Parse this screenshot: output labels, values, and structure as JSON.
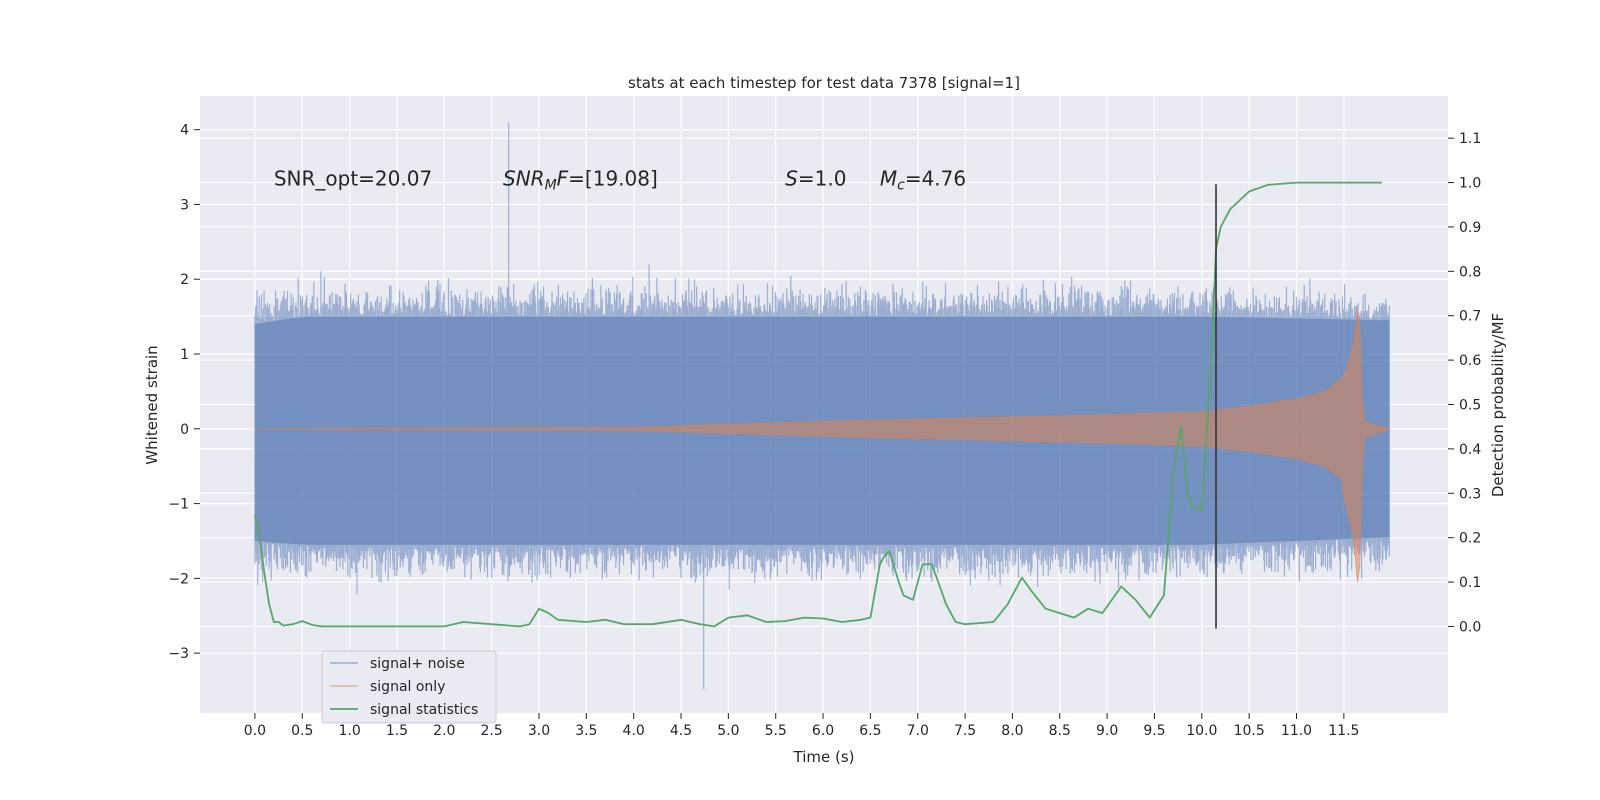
{
  "chart_data": {
    "type": "line",
    "title": "stats at each timestep for test data 7378 [signal=1]",
    "xlabel": "Time (s)",
    "ylabel_left": "Whitened strain",
    "ylabel_right": "Detection probability/MF",
    "xlim": [
      -0.58,
      12.6
    ],
    "ylim_left": [
      -3.8,
      4.45
    ],
    "ylim_right": [
      -0.195,
      1.195
    ],
    "x_ticks": [
      0.0,
      0.5,
      1.0,
      1.5,
      2.0,
      2.5,
      3.0,
      3.5,
      4.0,
      4.5,
      5.0,
      5.5,
      6.0,
      6.5,
      7.0,
      7.5,
      8.0,
      8.5,
      9.0,
      9.5,
      10.0,
      10.5,
      11.0,
      11.5
    ],
    "x_tick_labels": [
      "0.0",
      "0.5",
      "1.0",
      "1.5",
      "2.0",
      "2.5",
      "3.0",
      "3.5",
      "4.0",
      "4.5",
      "5.0",
      "5.5",
      "6.0",
      "6.5",
      "7.0",
      "7.5",
      "8.0",
      "8.5",
      "9.0",
      "9.5",
      "10.0",
      "10.5",
      "11.0",
      "11.5"
    ],
    "y_left_ticks": [
      -3,
      -2,
      -1,
      0,
      1,
      2,
      3,
      4
    ],
    "y_left_tick_labels": [
      "−3",
      "−2",
      "−1",
      "0",
      "1",
      "2",
      "3",
      "4"
    ],
    "y_right_ticks": [
      0.0,
      0.1,
      0.2,
      0.3,
      0.4,
      0.5,
      0.6,
      0.7,
      0.8,
      0.9,
      1.0,
      1.1
    ],
    "y_right_tick_labels": [
      "0.0",
      "0.1",
      "0.2",
      "0.3",
      "0.4",
      "0.5",
      "0.6",
      "0.7",
      "0.8",
      "0.9",
      "1.0",
      "1.1"
    ],
    "grid": true,
    "legend_position": "lower-left",
    "annotations": [
      {
        "id": "snr-opt",
        "text": "SNR_opt=20.07",
        "x": 0.2,
        "y": 3.35
      },
      {
        "id": "snr-mf",
        "text_main": "SNR",
        "text_sub": "M",
        "text_rest": "F=[19.08]",
        "x": 2.62,
        "y": 3.35
      },
      {
        "id": "s-value",
        "text_main": "S",
        "text_rest": "=1.0",
        "x": 5.6,
        "y": 3.35
      },
      {
        "id": "mc-value",
        "text_main": "M",
        "text_sub": "c",
        "text_rest": "=4.76",
        "x": 6.6,
        "y": 3.35
      }
    ],
    "vertical_marker": {
      "x": 10.15,
      "y_range": [
        -2.67,
        3.27
      ],
      "color": "#333333"
    },
    "series": [
      {
        "name": "signal+ noise",
        "kind": "noise-band",
        "color": "#4c72b0",
        "x_range": [
          0.0,
          11.98
        ],
        "envelope_upper": [
          [
            0.0,
            1.4
          ],
          [
            0.5,
            1.5
          ],
          [
            1.0,
            1.5
          ],
          [
            2.0,
            1.5
          ],
          [
            4.0,
            1.5
          ],
          [
            6.0,
            1.5
          ],
          [
            8.0,
            1.5
          ],
          [
            10.0,
            1.5
          ],
          [
            11.98,
            1.45
          ]
        ],
        "envelope_lower": [
          [
            0.0,
            -1.5
          ],
          [
            0.5,
            -1.55
          ],
          [
            2.0,
            -1.55
          ],
          [
            4.0,
            -1.55
          ],
          [
            6.0,
            -1.55
          ],
          [
            8.0,
            -1.55
          ],
          [
            10.0,
            -1.55
          ],
          [
            11.98,
            -1.45
          ]
        ],
        "spike_max": 4.1,
        "spike_max_x": 2.68,
        "spike_min": -3.48,
        "spike_min_x": 4.74
      },
      {
        "name": "signal only",
        "kind": "chirp",
        "color": "#dd8452",
        "envelope": [
          [
            0.0,
            0.0
          ],
          [
            4.0,
            0.02
          ],
          [
            5.0,
            0.06
          ],
          [
            6.0,
            0.1
          ],
          [
            7.0,
            0.13
          ],
          [
            8.0,
            0.16
          ],
          [
            9.0,
            0.19
          ],
          [
            10.0,
            0.23
          ],
          [
            10.5,
            0.3
          ],
          [
            11.0,
            0.4
          ],
          [
            11.3,
            0.5
          ],
          [
            11.5,
            0.7
          ],
          [
            11.6,
            1.1
          ],
          [
            11.66,
            1.75
          ],
          [
            11.7,
            0.1
          ],
          [
            11.98,
            0.0
          ]
        ]
      },
      {
        "name": "signal statistics",
        "kind": "line",
        "axis": "right",
        "color": "#55a868",
        "points": [
          [
            0.0,
            0.25
          ],
          [
            0.05,
            0.2
          ],
          [
            0.1,
            0.12
          ],
          [
            0.15,
            0.05
          ],
          [
            0.2,
            0.01
          ],
          [
            0.25,
            0.01
          ],
          [
            0.3,
            0.002
          ],
          [
            0.4,
            0.005
          ],
          [
            0.5,
            0.012
          ],
          [
            0.6,
            0.004
          ],
          [
            0.7,
            0.0
          ],
          [
            1.0,
            0.0
          ],
          [
            1.5,
            0.0
          ],
          [
            2.0,
            0.0
          ],
          [
            2.2,
            0.01
          ],
          [
            2.5,
            0.005
          ],
          [
            2.8,
            0.0
          ],
          [
            2.9,
            0.005
          ],
          [
            3.0,
            0.04
          ],
          [
            3.1,
            0.03
          ],
          [
            3.2,
            0.015
          ],
          [
            3.5,
            0.01
          ],
          [
            3.7,
            0.015
          ],
          [
            3.9,
            0.005
          ],
          [
            4.2,
            0.005
          ],
          [
            4.5,
            0.015
          ],
          [
            4.7,
            0.005
          ],
          [
            4.85,
            0.0
          ],
          [
            5.0,
            0.02
          ],
          [
            5.2,
            0.025
          ],
          [
            5.4,
            0.01
          ],
          [
            5.6,
            0.012
          ],
          [
            5.8,
            0.02
          ],
          [
            6.0,
            0.018
          ],
          [
            6.2,
            0.01
          ],
          [
            6.4,
            0.015
          ],
          [
            6.5,
            0.02
          ],
          [
            6.6,
            0.14
          ],
          [
            6.65,
            0.16
          ],
          [
            6.7,
            0.17
          ],
          [
            6.8,
            0.1
          ],
          [
            6.85,
            0.07
          ],
          [
            6.95,
            0.06
          ],
          [
            7.05,
            0.14
          ],
          [
            7.15,
            0.14
          ],
          [
            7.3,
            0.05
          ],
          [
            7.4,
            0.01
          ],
          [
            7.5,
            0.005
          ],
          [
            7.8,
            0.01
          ],
          [
            7.95,
            0.05
          ],
          [
            8.1,
            0.11
          ],
          [
            8.2,
            0.08
          ],
          [
            8.35,
            0.04
          ],
          [
            8.5,
            0.03
          ],
          [
            8.65,
            0.02
          ],
          [
            8.8,
            0.04
          ],
          [
            8.95,
            0.03
          ],
          [
            9.15,
            0.09
          ],
          [
            9.3,
            0.06
          ],
          [
            9.45,
            0.02
          ],
          [
            9.6,
            0.07
          ],
          [
            9.7,
            0.35
          ],
          [
            9.78,
            0.45
          ],
          [
            9.85,
            0.3
          ],
          [
            9.9,
            0.27
          ],
          [
            10.0,
            0.26
          ],
          [
            10.1,
            0.6
          ],
          [
            10.15,
            0.85
          ],
          [
            10.2,
            0.9
          ],
          [
            10.3,
            0.94
          ],
          [
            10.5,
            0.98
          ],
          [
            10.7,
            0.995
          ],
          [
            11.0,
            1.0
          ],
          [
            11.9,
            1.0
          ]
        ]
      }
    ]
  }
}
